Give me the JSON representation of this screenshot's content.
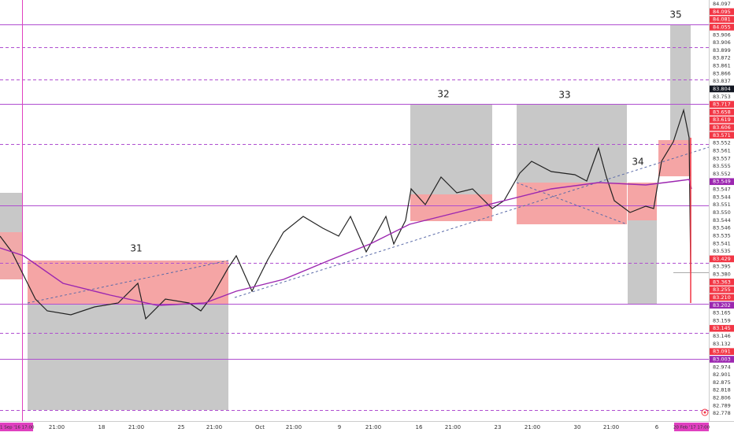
{
  "chart": {
    "box_labels": [
      "31",
      "32",
      "33",
      "34",
      "35"
    ],
    "price_labels": [
      {
        "text": "84.097",
        "bg": "#ffffff"
      },
      {
        "text": "84.095",
        "bg": "#f23645"
      },
      {
        "text": "84.081",
        "bg": "#f23645"
      },
      {
        "text": "84.055",
        "bg": "#f23645"
      },
      {
        "text": "83.906",
        "bg": "#ffffff"
      },
      {
        "text": "83.906",
        "bg": "#ffffff"
      },
      {
        "text": "83.899",
        "bg": "#ffffff"
      },
      {
        "text": "83.872",
        "bg": "#ffffff"
      },
      {
        "text": "83.861",
        "bg": "#ffffff"
      },
      {
        "text": "83.866",
        "bg": "#ffffff"
      },
      {
        "text": "83.837",
        "bg": "#ffffff"
      },
      {
        "text": "83.804",
        "bg": "#131722"
      },
      {
        "text": "83.753",
        "bg": "#ffffff"
      },
      {
        "text": "83.717",
        "bg": "#f23645"
      },
      {
        "text": "83.658",
        "bg": "#f23645"
      },
      {
        "text": "83.619",
        "bg": "#f23645"
      },
      {
        "text": "83.606",
        "bg": "#f23645"
      },
      {
        "text": "83.571",
        "bg": "#f23645"
      },
      {
        "text": "83.552",
        "bg": "#ffffff"
      },
      {
        "text": "83.561",
        "bg": "#ffffff"
      },
      {
        "text": "83.557",
        "bg": "#ffffff"
      },
      {
        "text": "83.555",
        "bg": "#ffffff"
      },
      {
        "text": "83.552",
        "bg": "#ffffff"
      },
      {
        "text": "83.549",
        "bg": "#9c27b0"
      },
      {
        "text": "83.547",
        "bg": "#ffffff"
      },
      {
        "text": "83.544",
        "bg": "#ffffff"
      },
      {
        "text": "83.551",
        "bg": "#ffffff"
      },
      {
        "text": "83.550",
        "bg": "#ffffff"
      },
      {
        "text": "83.544",
        "bg": "#ffffff"
      },
      {
        "text": "83.546",
        "bg": "#ffffff"
      },
      {
        "text": "83.535",
        "bg": "#ffffff"
      },
      {
        "text": "83.541",
        "bg": "#ffffff"
      },
      {
        "text": "83.535",
        "bg": "#ffffff"
      },
      {
        "text": "83.429",
        "bg": "#f23645"
      },
      {
        "text": "83.395",
        "bg": "#ffffff"
      },
      {
        "text": "83.380",
        "bg": "#ffffff"
      },
      {
        "text": "83.363",
        "bg": "#f23645"
      },
      {
        "text": "83.255",
        "bg": "#f23645"
      },
      {
        "text": "83.210",
        "bg": "#f23645"
      },
      {
        "text": "83.202",
        "bg": "#9c27b0"
      },
      {
        "text": "83.165",
        "bg": "#ffffff"
      },
      {
        "text": "83.159",
        "bg": "#ffffff"
      },
      {
        "text": "83.145",
        "bg": "#f23645"
      },
      {
        "text": "83.146",
        "bg": "#ffffff"
      },
      {
        "text": "83.132",
        "bg": "#ffffff"
      },
      {
        "text": "83.091",
        "bg": "#f23645"
      },
      {
        "text": "83.003",
        "bg": "#9c27b0"
      },
      {
        "text": "82.974",
        "bg": "#ffffff"
      },
      {
        "text": "82.901",
        "bg": "#ffffff"
      },
      {
        "text": "82.875",
        "bg": "#ffffff"
      },
      {
        "text": "82.818",
        "bg": "#ffffff"
      },
      {
        "text": "82.806",
        "bg": "#ffffff"
      },
      {
        "text": "82.789",
        "bg": "#ffffff"
      },
      {
        "text": "82.778",
        "bg": "#ffffff"
      }
    ],
    "time_labels": [
      {
        "text": "11 Sep '16  17:00",
        "highlight": true
      },
      {
        "text": "21:00",
        "highlight": false
      },
      {
        "text": "18",
        "highlight": false
      },
      {
        "text": "21:00",
        "highlight": false
      },
      {
        "text": "25",
        "highlight": false
      },
      {
        "text": "21:00",
        "highlight": false
      },
      {
        "text": "Oct",
        "highlight": false
      },
      {
        "text": "21:00",
        "highlight": false
      },
      {
        "text": "9",
        "highlight": false
      },
      {
        "text": "21:00",
        "highlight": false
      },
      {
        "text": "16",
        "highlight": false
      },
      {
        "text": "21:00",
        "highlight": false
      },
      {
        "text": "23",
        "highlight": false
      },
      {
        "text": "21:00",
        "highlight": false
      },
      {
        "text": "30",
        "highlight": false
      },
      {
        "text": "21:00",
        "highlight": false
      },
      {
        "text": "6",
        "highlight": false
      },
      {
        "text": "20 Feb '17  17:00",
        "highlight": true
      }
    ]
  }
}
